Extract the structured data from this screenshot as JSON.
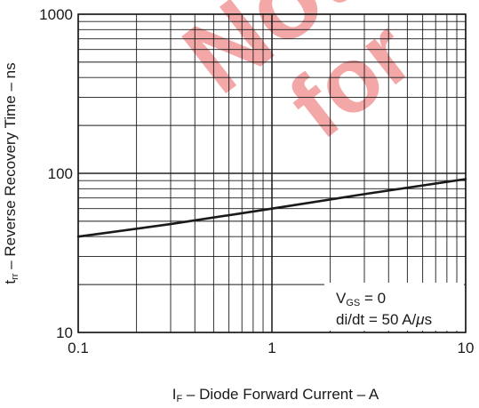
{
  "chart_data": {
    "type": "line",
    "x_scale": "log",
    "y_scale": "log",
    "xlim": [
      0.1,
      10
    ],
    "ylim": [
      10,
      1000
    ],
    "x_tick_labels": [
      "0.1",
      "1",
      "10"
    ],
    "y_tick_labels": [
      "10",
      "100",
      "1000"
    ],
    "xlabel": {
      "main": "I",
      "sub": "F",
      "rest": " – Diode Forward Current – A"
    },
    "ylabel": {
      "main": "t",
      "sub": "rr",
      "rest": " – Reverse Recovery Time – ns"
    },
    "grid": true,
    "series": [
      {
        "x": [
          0.1,
          0.3,
          1,
          3,
          10
        ],
        "y": [
          40,
          48,
          60,
          74,
          92
        ]
      }
    ],
    "annotation": {
      "line1_main": "V",
      "line1_sub": "GS",
      "line1_rest": " = 0",
      "line2": "di/dt = 50 A/",
      "line2_mu": "μ",
      "line2_end": "s"
    },
    "watermark_lines": [
      "Not",
      "for"
    ],
    "colors": {
      "line": "#1a1a1a",
      "grid": "#1a1a1a",
      "watermark": "#f08a8a"
    }
  }
}
